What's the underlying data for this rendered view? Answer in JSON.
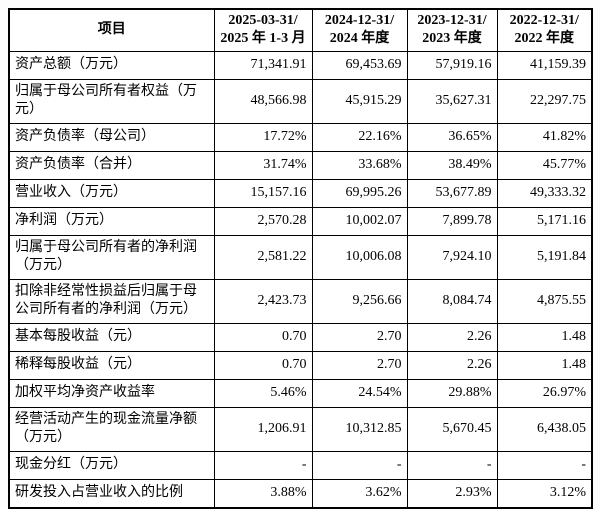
{
  "colors": {
    "background": "#ffffff",
    "page_background": "#fdfdfd",
    "border": "#000000",
    "text": "#000000"
  },
  "table": {
    "item_header": "项目",
    "period_headers": [
      {
        "line1": "2025-03-31/",
        "line2": "2025 年 1-3 月"
      },
      {
        "line1": "2024-12-31/",
        "line2": "2024 年度"
      },
      {
        "line1": "2023-12-31/",
        "line2": "2023 年度"
      },
      {
        "line1": "2022-12-31/",
        "line2": "2022 年度"
      }
    ],
    "rows": [
      {
        "label": "资产总额（万元）",
        "values": [
          "71,341.91",
          "69,453.69",
          "57,919.16",
          "41,159.39"
        ]
      },
      {
        "label": "归属于母公司所有者权益（万元）",
        "values": [
          "48,566.98",
          "45,915.29",
          "35,627.31",
          "22,297.75"
        ]
      },
      {
        "label": "资产负债率（母公司）",
        "values": [
          "17.72%",
          "22.16%",
          "36.65%",
          "41.82%"
        ]
      },
      {
        "label": "资产负债率（合并）",
        "values": [
          "31.74%",
          "33.68%",
          "38.49%",
          "45.77%"
        ]
      },
      {
        "label": "营业收入（万元）",
        "values": [
          "15,157.16",
          "69,995.26",
          "53,677.89",
          "49,333.32"
        ]
      },
      {
        "label": "净利润（万元）",
        "values": [
          "2,570.28",
          "10,002.07",
          "7,899.78",
          "5,171.16"
        ]
      },
      {
        "label": "归属于母公司所有者的净利润（万元）",
        "values": [
          "2,581.22",
          "10,006.08",
          "7,924.10",
          "5,191.84"
        ]
      },
      {
        "label": "扣除非经常性损益后归属于母公司所有者的净利润（万元）",
        "values": [
          "2,423.73",
          "9,256.66",
          "8,084.74",
          "4,875.55"
        ]
      },
      {
        "label": "基本每股收益（元）",
        "values": [
          "0.70",
          "2.70",
          "2.26",
          "1.48"
        ]
      },
      {
        "label": "稀释每股收益（元）",
        "values": [
          "0.70",
          "2.70",
          "2.26",
          "1.48"
        ]
      },
      {
        "label": "加权平均净资产收益率",
        "values": [
          "5.46%",
          "24.54%",
          "29.88%",
          "26.97%"
        ]
      },
      {
        "label": "经营活动产生的现金流量净额（万元）",
        "values": [
          "1,206.91",
          "10,312.85",
          "5,670.45",
          "6,438.05"
        ]
      },
      {
        "label": "现金分红（万元）",
        "values": [
          "-",
          "-",
          "-",
          "-"
        ]
      },
      {
        "label": "研发投入占营业收入的比例",
        "values": [
          "3.88%",
          "3.62%",
          "2.93%",
          "3.12%"
        ]
      }
    ]
  }
}
